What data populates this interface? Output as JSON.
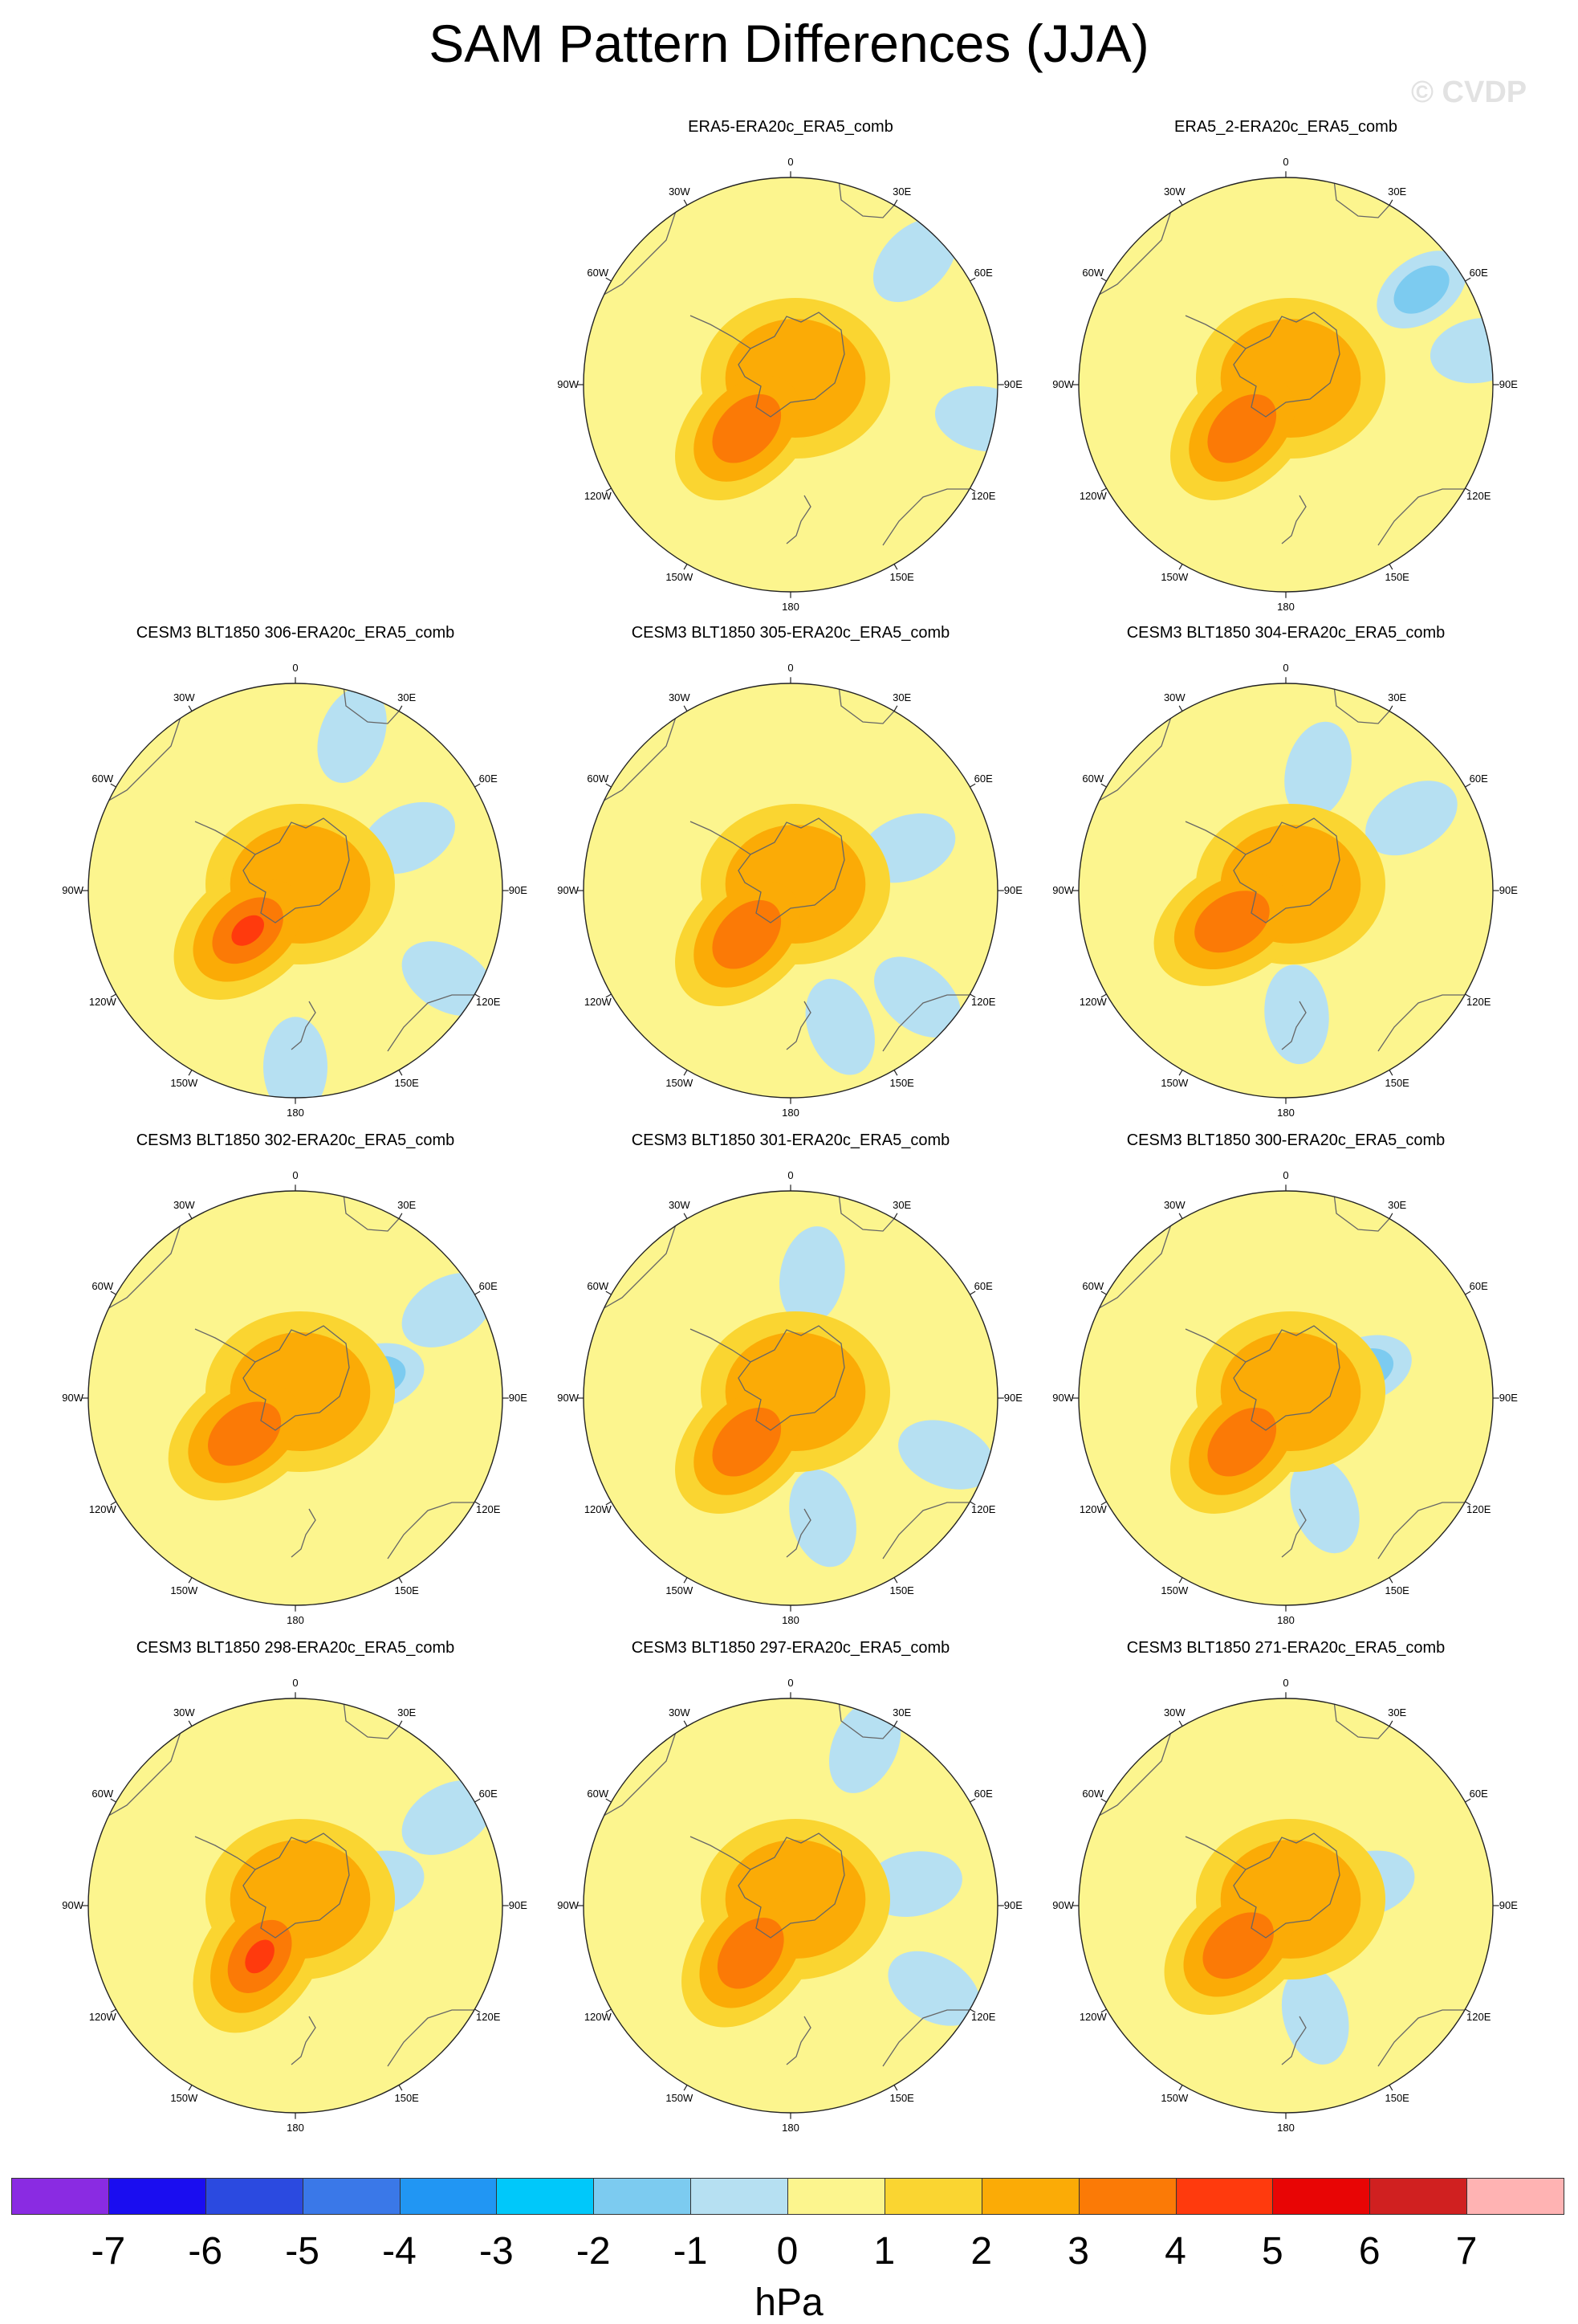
{
  "title": "SAM Pattern Differences (JJA)",
  "watermark": "© CVDP",
  "map": {
    "projection": "south polar stereographic",
    "longitude_labels": [
      "0",
      "30E",
      "60E",
      "90E",
      "120E",
      "150E",
      "180",
      "150W",
      "120W",
      "90W",
      "60W",
      "30W"
    ]
  },
  "panels": [
    {
      "title": "ERA5-ERA20c_ERA5_comb",
      "max": 4,
      "lobe_dir": 225,
      "blue": [
        [
          45,
          0.85,
          1
        ],
        [
          100,
          0.95,
          1
        ]
      ]
    },
    {
      "title": "ERA5_2-ERA20c_ERA5_comb",
      "max": 4,
      "lobe_dir": 225,
      "blue": [
        [
          55,
          0.8,
          2
        ],
        [
          80,
          0.95,
          1
        ]
      ]
    },
    {
      "title": "CESM3 BLT1850 306-ERA20c_ERA5_comb",
      "max": 5,
      "lobe_dir": 230,
      "blue": [
        [
          20,
          0.8,
          1
        ],
        [
          180,
          0.85,
          1
        ],
        [
          65,
          0.6,
          1
        ],
        [
          120,
          0.85,
          1
        ]
      ]
    },
    {
      "title": "CESM3 BLT1850 305-ERA20c_ERA5_comb",
      "max": 4,
      "lobe_dir": 225,
      "blue": [
        [
          130,
          0.8,
          1
        ],
        [
          160,
          0.7,
          1
        ],
        [
          70,
          0.6,
          1
        ]
      ]
    },
    {
      "title": "CESM3 BLT1850 304-ERA20c_ERA5_comb",
      "max": 4,
      "lobe_dir": 240,
      "blue": [
        [
          60,
          0.7,
          1
        ],
        [
          175,
          0.6,
          1
        ],
        [
          15,
          0.6,
          1
        ]
      ]
    },
    {
      "title": "CESM3 BLT1850 302-ERA20c_ERA5_comb",
      "max": 4,
      "lobe_dir": 235,
      "blue": [
        [
          75,
          0.4,
          2
        ],
        [
          60,
          0.85,
          1
        ]
      ]
    },
    {
      "title": "CESM3 BLT1850 301-ERA20c_ERA5_comb",
      "max": 4,
      "lobe_dir": 225,
      "blue": [
        [
          110,
          0.8,
          1
        ],
        [
          165,
          0.6,
          1
        ],
        [
          10,
          0.6,
          1
        ]
      ]
    },
    {
      "title": "CESM3 BLT1850 300-ERA20c_ERA5_comb",
      "max": 4,
      "lobe_dir": 225,
      "blue": [
        [
          70,
          0.4,
          3
        ],
        [
          160,
          0.55,
          1
        ]
      ]
    },
    {
      "title": "CESM3 BLT1850 298-ERA20c_ERA5_comb",
      "max": 5,
      "lobe_dir": 215,
      "blue": [
        [
          75,
          0.4,
          1
        ],
        [
          60,
          0.85,
          1
        ]
      ]
    },
    {
      "title": "CESM3 BLT1850 297-ERA20c_ERA5_comb",
      "max": 4,
      "lobe_dir": 220,
      "blue": [
        [
          80,
          0.6,
          1
        ],
        [
          120,
          0.8,
          1
        ],
        [
          25,
          0.85,
          1
        ]
      ]
    },
    {
      "title": "CESM3 BLT1850 271-ERA20c_ERA5_comb",
      "max": 4,
      "lobe_dir": 230,
      "blue": [
        [
          75,
          0.4,
          1
        ],
        [
          165,
          0.55,
          1
        ]
      ]
    }
  ],
  "colorbar": {
    "units": "hPa",
    "ticks": [
      "-7",
      "-6",
      "-5",
      "-4",
      "-3",
      "-2",
      "-1",
      "0",
      "1",
      "2",
      "3",
      "4",
      "5",
      "6",
      "7"
    ],
    "colors": [
      "#8a2be2",
      "#1a0df0",
      "#2b4ae0",
      "#3a78e8",
      "#2196f3",
      "#00c8fa",
      "#7ccbf0",
      "#b6e0f2",
      "#fcf58e",
      "#fad531",
      "#fbab06",
      "#fb7a06",
      "#ff3a0d",
      "#e80505",
      "#d02020",
      "#ffb3b3"
    ]
  }
}
